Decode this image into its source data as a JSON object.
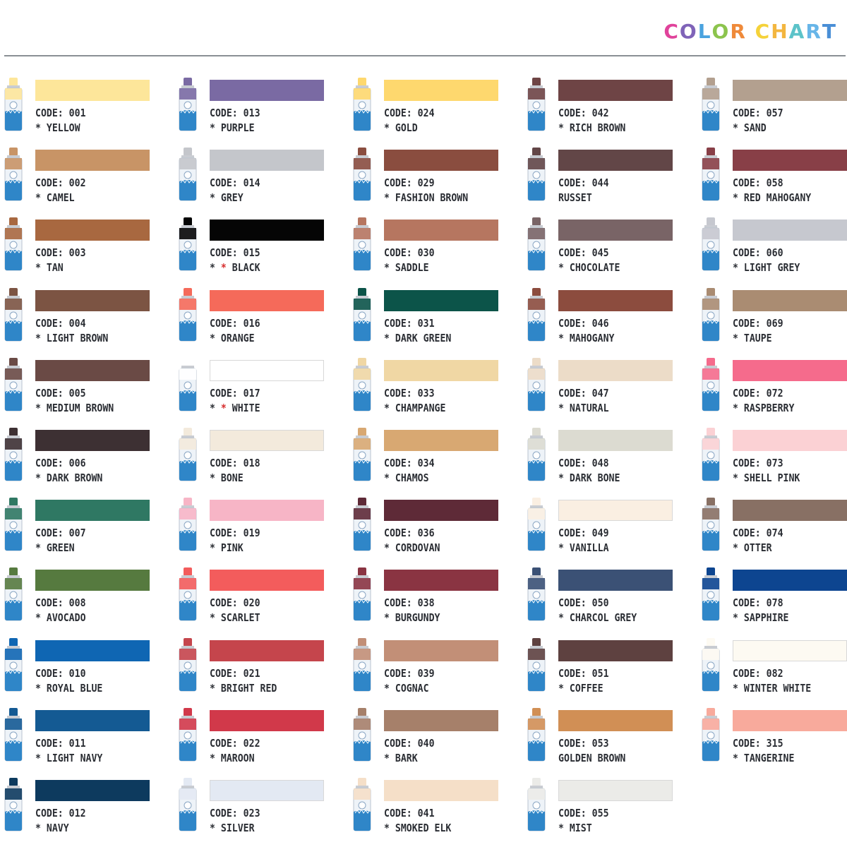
{
  "header": {
    "title_letters": [
      {
        "ch": "C",
        "color": "#e0439b"
      },
      {
        "ch": "O",
        "color": "#7f63b8"
      },
      {
        "ch": "L",
        "color": "#4aa3df"
      },
      {
        "ch": "O",
        "color": "#8cc44d"
      },
      {
        "ch": "R",
        "color": "#ef8a3a"
      },
      {
        "ch": " ",
        "color": "#ffffff"
      },
      {
        "ch": "C",
        "color": "#f5d23a"
      },
      {
        "ch": "H",
        "color": "#f3b63f"
      },
      {
        "ch": "A",
        "color": "#5cc3c9"
      },
      {
        "ch": "R",
        "color": "#67b5e8"
      },
      {
        "ch": "T",
        "color": "#4a8fd6"
      }
    ]
  },
  "columns": [
    [
      {
        "code": "CODE: 001",
        "name": "* YELLOW",
        "color": "#fde69a"
      },
      {
        "code": "CODE: 002",
        "name": "* CAMEL",
        "color": "#c89466"
      },
      {
        "code": "CODE: 003",
        "name": "* TAN",
        "color": "#a86840"
      },
      {
        "code": "CODE: 004",
        "name": "* LIGHT BROWN",
        "color": "#7c5443"
      },
      {
        "code": "CODE: 005",
        "name": "* MEDIUM BROWN",
        "color": "#6a4a45"
      },
      {
        "code": "CODE: 006",
        "name": "* DARK BROWN",
        "color": "#3d3033"
      },
      {
        "code": "CODE: 007",
        "name": "* GREEN",
        "color": "#2f7863"
      },
      {
        "code": "CODE: 008",
        "name": "* AVOCADO",
        "color": "#567a3f"
      },
      {
        "code": "CODE: 010",
        "name": "* ROYAL BLUE",
        "color": "#0f66b3"
      },
      {
        "code": "CODE: 011",
        "name": "* LIGHT NAVY",
        "color": "#145a93"
      },
      {
        "code": "CODE: 012",
        "name": "* NAVY",
        "color": "#0d3a5e"
      }
    ],
    [
      {
        "code": "CODE: 013",
        "name": "* PURPLE",
        "color": "#7a6aa3"
      },
      {
        "code": "CODE: 014",
        "name": "* GREY",
        "color": "#c4c6cb"
      },
      {
        "code": "CODE: 015",
        "name": "* * BLACK",
        "color": "#050505",
        "red_star": true
      },
      {
        "code": "CODE: 016",
        "name": "* ORANGE",
        "color": "#f56a5a"
      },
      {
        "code": "CODE: 017",
        "name": "* * WHITE",
        "color": "#ffffff",
        "red_star": true,
        "light": true
      },
      {
        "code": "CODE: 018",
        "name": "* BONE",
        "color": "#f3eadc",
        "light": true
      },
      {
        "code": "CODE: 019",
        "name": "* PINK",
        "color": "#f7b5c6"
      },
      {
        "code": "CODE: 020",
        "name": "* SCARLET",
        "color": "#f35c5c"
      },
      {
        "code": "CODE: 021",
        "name": "* BRIGHT RED",
        "color": "#c5454c"
      },
      {
        "code": "CODE: 022",
        "name": "* MAROON",
        "color": "#d1394a"
      },
      {
        "code": "CODE: 023",
        "name": "* SILVER",
        "color": "#e3e9f3",
        "light": true
      }
    ],
    [
      {
        "code": "CODE: 024",
        "name": "* GOLD",
        "color": "#fed86e"
      },
      {
        "code": "CODE: 029",
        "name": "* FASHION BROWN",
        "color": "#8a4d3f"
      },
      {
        "code": "CODE: 030",
        "name": "* SADDLE",
        "color": "#b67660"
      },
      {
        "code": "CODE: 031",
        "name": "* DARK GREEN",
        "color": "#0c5449"
      },
      {
        "code": "CODE: 033",
        "name": "* CHAMPANGE",
        "color": "#f0d7a4"
      },
      {
        "code": "CODE: 034",
        "name": "* CHAMOS",
        "color": "#d8a872"
      },
      {
        "code": "CODE: 036",
        "name": "* CORDOVAN",
        "color": "#5e2a37"
      },
      {
        "code": "CODE: 038",
        "name": "* BURGUNDY",
        "color": "#8a3442"
      },
      {
        "code": "CODE: 039",
        "name": "* COGNAC",
        "color": "#c28f77"
      },
      {
        "code": "CODE: 040",
        "name": "* BARK",
        "color": "#a6806a"
      },
      {
        "code": "CODE: 041",
        "name": "* SMOKED ELK",
        "color": "#f5dfc8"
      }
    ],
    [
      {
        "code": "CODE: 042",
        "name": "* RICH BROWN",
        "color": "#6e4445"
      },
      {
        "code": "CODE: 044",
        "name": "RUSSET",
        "color": "#624647"
      },
      {
        "code": "CODE: 045",
        "name": "* CHOCOLATE",
        "color": "#796466"
      },
      {
        "code": "CODE: 046",
        "name": "* MAHOGANY",
        "color": "#8c4c3e"
      },
      {
        "code": "CODE: 047",
        "name": "* NATURAL",
        "color": "#ecdcc8"
      },
      {
        "code": "CODE: 048",
        "name": "* DARK BONE",
        "color": "#dcdbd1"
      },
      {
        "code": "CODE: 049",
        "name": "* VANILLA",
        "color": "#faefe2",
        "light": true
      },
      {
        "code": "CODE: 050",
        "name": "* CHARCOL GREY",
        "color": "#3b5175"
      },
      {
        "code": "CODE: 051",
        "name": "* COFFEE",
        "color": "#5e4140"
      },
      {
        "code": "CODE: 053",
        "name": "GOLDEN BROWN",
        "color": "#d18f55"
      },
      {
        "code": "CODE: 055",
        "name": "* MIST",
        "color": "#ebebe8",
        "light": true
      }
    ],
    [
      {
        "code": "CODE: 057",
        "name": "* SAND",
        "color": "#b3a08f"
      },
      {
        "code": "CODE: 058",
        "name": "* RED MAHOGANY",
        "color": "#883f47"
      },
      {
        "code": "CODE: 060",
        "name": "* LIGHT GREY",
        "color": "#c6c8cf"
      },
      {
        "code": "CODE: 069",
        "name": "* TAUPE",
        "color": "#aa8c72"
      },
      {
        "code": "CODE: 072",
        "name": "* RASPBERRY",
        "color": "#f56b8c"
      },
      {
        "code": "CODE: 073",
        "name": "* SHELL PINK",
        "color": "#fbd1d4"
      },
      {
        "code": "CODE: 074",
        "name": "* OTTER",
        "color": "#887064"
      },
      {
        "code": "CODE: 078",
        "name": "* SAPPHIRE",
        "color": "#0d4590"
      },
      {
        "code": "CODE: 082",
        "name": "* WINTER WHITE",
        "color": "#fdfaf2",
        "light": true
      },
      {
        "code": "CODE: 315",
        "name": "* TANGERINE",
        "color": "#f8aa9c"
      }
    ]
  ]
}
